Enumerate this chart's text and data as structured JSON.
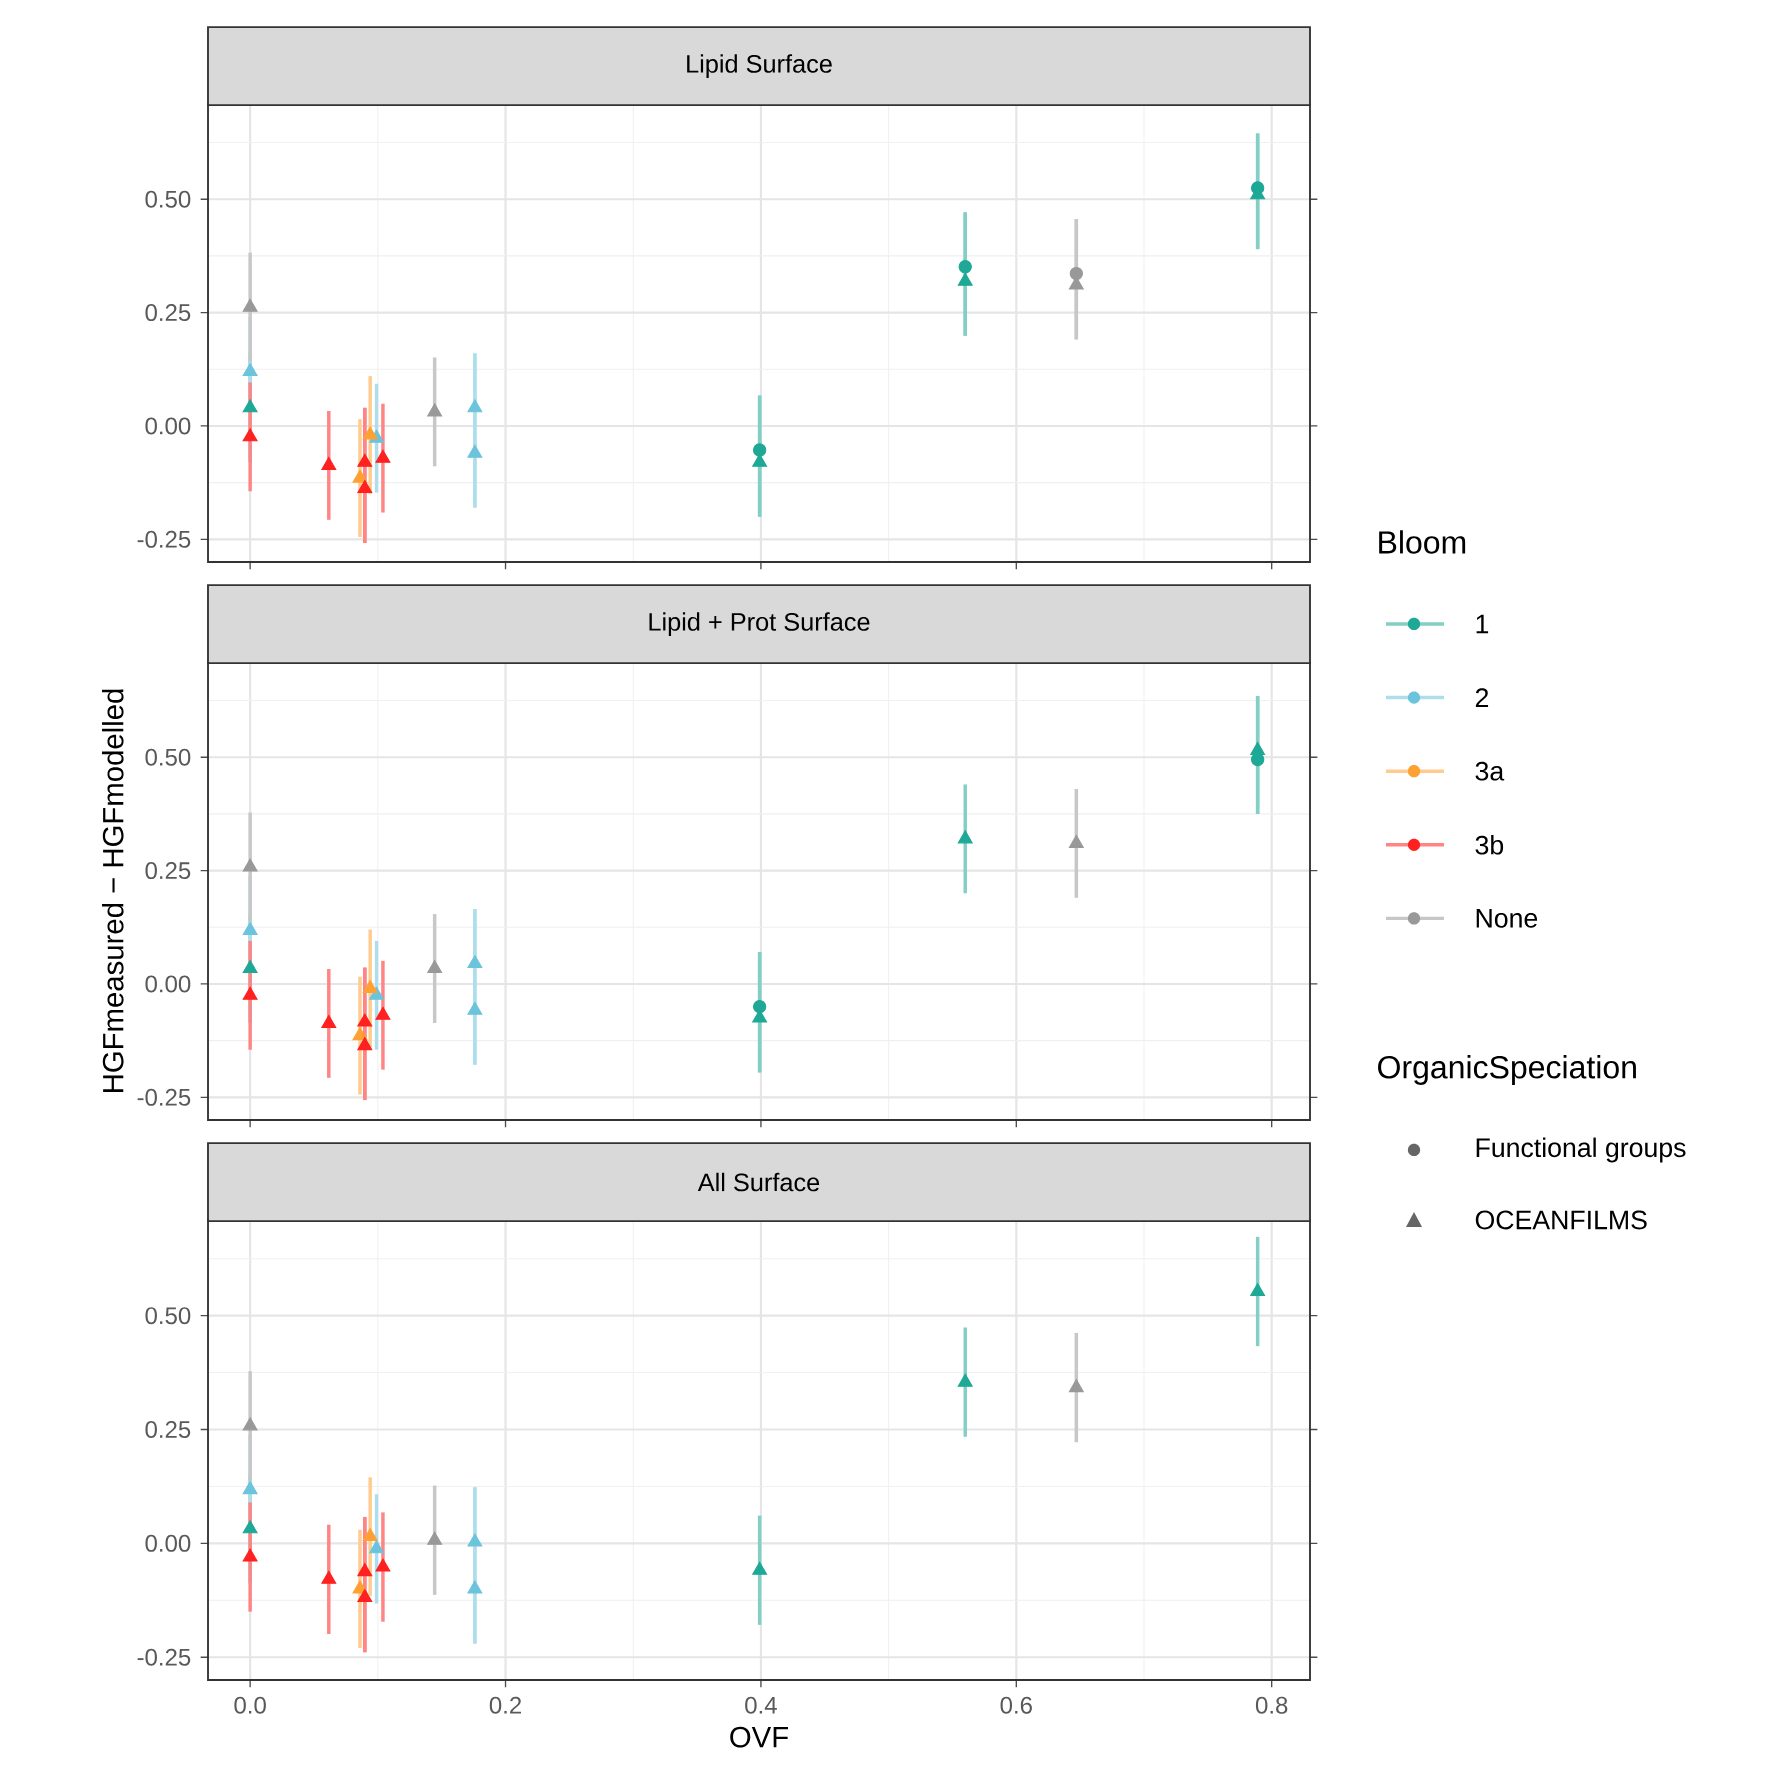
{
  "chart_data": [
    {
      "type": "scatter",
      "title": "Lipid Surface",
      "xlim": [
        -0.033,
        0.83
      ],
      "ylim": [
        -0.3,
        0.71
      ],
      "grid": true,
      "tick_labels": "y",
      "xticks": [
        0,
        0.2,
        0.4,
        0.6,
        0.8
      ],
      "yticks": [
        {
          "value": -0.25,
          "label": "-0.25"
        },
        {
          "value": 0,
          "label": "0.00"
        },
        {
          "value": 0.25,
          "label": "0.25"
        },
        {
          "value": 0.5,
          "label": "0.50"
        }
      ],
      "series": [
        {
          "color": "#1ea896",
          "marker": "circle",
          "x": [
            0.399,
            0.56,
            0.789
          ],
          "values": [
            -0.053,
            0.351,
            0.525
          ],
          "errors": [
            [
              -0.2,
              0.067
            ],
            [
              0.199,
              0.471
            ],
            [
              0.39,
              0.645
            ]
          ]
        },
        {
          "color": "#999999",
          "marker": "circle",
          "x": [
            0.647
          ],
          "values": [
            0.336
          ],
          "errors": [
            [
              0.191,
              0.456
            ]
          ]
        },
        {
          "color": "#1ea896",
          "marker": "triangle",
          "x": [
            0,
            0.399,
            0.56,
            0.789
          ],
          "values": [
            0.04,
            -0.08,
            0.319,
            0.51
          ],
          "errors": [
            0.12,
            [
              -0.2,
              0.067
            ],
            [
              0.199,
              0.471
            ],
            [
              0.39,
              0.645
            ]
          ]
        },
        {
          "color": "#6cc3dc",
          "marker": "triangle",
          "x": [
            0,
            0.099,
            0.176,
            0.176
          ],
          "values": [
            0.12,
            -0.027,
            0.04,
            -0.06
          ],
          "errors": [
            0.12,
            0.12,
            [
              -0.18,
              0.16
            ],
            [
              -0.18,
              0.16
            ]
          ]
        },
        {
          "color": "#ffa033",
          "marker": "triangle",
          "x": [
            0.086,
            0.094
          ],
          "values": [
            -0.115,
            -0.02
          ],
          "errors": [
            0.13,
            0.13
          ]
        },
        {
          "color": "#ff2020",
          "marker": "triangle",
          "x": [
            0,
            0.0616,
            0.0898,
            0.0898,
            0.104
          ],
          "values": [
            -0.024,
            -0.087,
            -0.138,
            -0.08,
            -0.071
          ],
          "errors": [
            0.12,
            0.12,
            [
              -0.258,
              0.04
            ],
            [
              -0.258,
              0.04
            ],
            0.12
          ]
        },
        {
          "color": "#999999",
          "marker": "triangle",
          "x": [
            0,
            0.1445,
            0.647
          ],
          "values": [
            0.262,
            0.031,
            0.311
          ],
          "errors": [
            0.12,
            0.12,
            [
              0.191,
              0.456
            ]
          ]
        }
      ]
    },
    {
      "type": "scatter",
      "title": "Lipid + Prot Surface",
      "ylabel": "HGFmeasured − HGFmodelled",
      "xlim": [
        -0.033,
        0.83
      ],
      "ylim": [
        -0.3,
        0.71
      ],
      "grid": true,
      "tick_labels": "y",
      "legend": "right",
      "legend_title": "Bloom",
      "annotations": [
        "OrganicSpeciation",
        "Functional groups",
        "OCEANFILMS"
      ],
      "xticks": [
        0,
        0.2,
        0.4,
        0.6,
        0.8
      ],
      "yticks": [
        {
          "value": -0.25,
          "label": "-0.25"
        },
        {
          "value": 0,
          "label": "0.00"
        },
        {
          "value": 0.25,
          "label": "0.25"
        },
        {
          "value": 0.5,
          "label": "0.50"
        }
      ],
      "series": [
        {
          "color": "#1ea896",
          "marker": "circle",
          "x": [
            0.399,
            0.789
          ],
          "values": [
            -0.05,
            0.495
          ],
          "errors": [
            [
              -0.195,
              0.07
            ],
            [
              0.375,
              0.635
            ]
          ]
        },
        {
          "name": "1",
          "color": "#1ea896",
          "marker": "triangle",
          "x": [
            0,
            0.399,
            0.56,
            0.789
          ],
          "values": [
            0.034,
            -0.075,
            0.32,
            0.515
          ],
          "errors": [
            0.12,
            [
              -0.195,
              0.07
            ],
            0.12,
            [
              0.375,
              0.635
            ]
          ]
        },
        {
          "name": "2",
          "color": "#6cc3dc",
          "marker": "triangle",
          "x": [
            0,
            0.099,
            0.176,
            0.176
          ],
          "values": [
            0.118,
            -0.025,
            0.045,
            -0.058
          ],
          "errors": [
            0.12,
            0.12,
            [
              -0.178,
              0.165
            ],
            [
              -0.178,
              0.165
            ]
          ]
        },
        {
          "name": "3a",
          "color": "#ffa033",
          "marker": "triangle",
          "x": [
            0.086,
            0.094
          ],
          "values": [
            -0.114,
            -0.01
          ],
          "errors": [
            0.13,
            0.13
          ]
        },
        {
          "name": "3b",
          "color": "#ff2020",
          "marker": "triangle",
          "x": [
            0,
            0.0616,
            0.0898,
            0.0898,
            0.104
          ],
          "values": [
            -0.025,
            -0.087,
            -0.136,
            -0.084,
            -0.069
          ],
          "errors": [
            0.12,
            0.12,
            [
              -0.256,
              0.036
            ],
            [
              -0.256,
              0.036
            ],
            0.12
          ]
        },
        {
          "name": "None",
          "color": "#999999",
          "marker": "triangle",
          "x": [
            0,
            0.1445,
            0.647
          ],
          "values": [
            0.258,
            0.034,
            0.31
          ],
          "errors": [
            0.12,
            0.12,
            0.12
          ]
        }
      ]
    },
    {
      "type": "scatter",
      "title": "All Surface",
      "xlabel": "OVF",
      "xlim": [
        -0.033,
        0.83
      ],
      "ylim": [
        -0.3,
        0.71
      ],
      "grid": true,
      "xticks": [
        {
          "value": 0,
          "label": "0.0"
        },
        {
          "value": 0.2,
          "label": "0.2"
        },
        {
          "value": 0.4,
          "label": "0.4"
        },
        {
          "value": 0.6,
          "label": "0.6"
        },
        {
          "value": 0.8,
          "label": "0.8"
        }
      ],
      "yticks": [
        {
          "value": -0.25,
          "label": "-0.25"
        },
        {
          "value": 0,
          "label": "0.00"
        },
        {
          "value": 0.25,
          "label": "0.25"
        },
        {
          "value": 0.5,
          "label": "0.50"
        }
      ],
      "series": [
        {
          "color": "#1ea896",
          "marker": "triangle",
          "x": [
            0,
            0.399,
            0.56,
            0.789
          ],
          "values": [
            0.032,
            -0.059,
            0.354,
            0.553
          ],
          "errors": [
            0.12,
            0.12,
            0.12,
            0.12
          ]
        },
        {
          "color": "#6cc3dc",
          "marker": "triangle",
          "x": [
            0,
            0.099,
            0.176,
            0.176
          ],
          "values": [
            0.118,
            -0.012,
            0.003,
            -0.1
          ],
          "errors": [
            0.12,
            0.12,
            [
              -0.22,
              0.123
            ],
            [
              -0.22,
              0.123
            ]
          ]
        },
        {
          "color": "#ffa033",
          "marker": "triangle",
          "x": [
            0.086,
            0.094
          ],
          "values": [
            -0.1,
            0.015
          ],
          "errors": [
            0.13,
            0.13
          ]
        },
        {
          "color": "#ff2020",
          "marker": "triangle",
          "x": [
            0,
            0.0616,
            0.0898,
            0.0898,
            0.104
          ],
          "values": [
            -0.03,
            -0.079,
            -0.119,
            -0.062,
            -0.052
          ],
          "errors": [
            0.12,
            0.12,
            [
              -0.239,
              0.058
            ],
            [
              -0.239,
              0.058
            ],
            0.12
          ]
        },
        {
          "color": "#999999",
          "marker": "triangle",
          "x": [
            0,
            0.1445,
            0.647
          ],
          "values": [
            0.258,
            0.007,
            0.342
          ],
          "errors": [
            0.12,
            0.12,
            0.12
          ]
        }
      ]
    }
  ]
}
